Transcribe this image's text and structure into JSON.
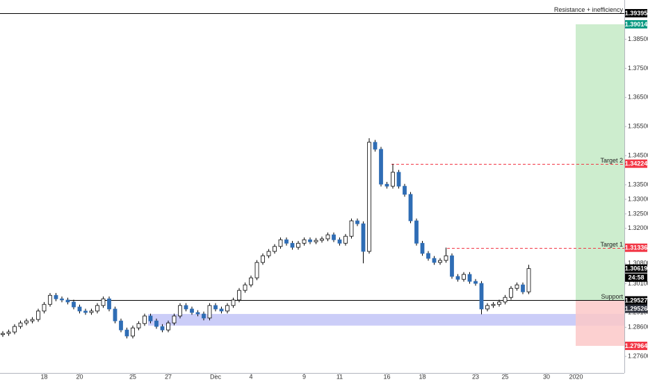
{
  "chart_data": {
    "type": "candlestick",
    "categories": [
      null,
      null,
      null,
      null,
      null,
      null,
      null,
      "18",
      null,
      null,
      null,
      null,
      null,
      "20",
      null,
      null,
      null,
      null,
      null,
      null,
      null,
      null,
      "25",
      null,
      null,
      null,
      null,
      null,
      "27",
      null,
      null,
      null,
      null,
      null,
      null,
      null,
      "Dec",
      null,
      null,
      null,
      null,
      null,
      "4",
      null,
      null,
      null,
      null,
      null,
      null,
      null,
      null,
      "9",
      null,
      null,
      null,
      null,
      null,
      "11",
      null,
      null,
      null,
      null,
      null,
      null,
      null,
      "16",
      null,
      null,
      null,
      null,
      null,
      "18",
      null,
      null,
      null,
      null,
      null,
      null,
      null,
      null,
      "23",
      null,
      null,
      null,
      null,
      "25",
      null,
      null,
      null,
      null,
      null,
      null,
      "30",
      null,
      null,
      null,
      null,
      "2020",
      null,
      null,
      null,
      null,
      null,
      null,
      null
    ],
    "open": [
      1.2835,
      1.2839,
      1.2844,
      1.2863,
      1.2875,
      1.2882,
      1.2887,
      1.2916,
      1.2939,
      1.297,
      1.2958,
      1.2954,
      1.2947,
      1.293,
      1.2916,
      1.2911,
      1.2916,
      1.2935,
      1.2958,
      1.2923,
      1.2882,
      1.2851,
      1.283,
      1.2858,
      1.2873,
      1.2899,
      1.2882,
      1.2863,
      1.2851,
      1.2875,
      1.2899,
      1.2935,
      1.2923,
      1.2911,
      1.2906,
      1.2892,
      1.2935,
      1.2923,
      1.2916,
      1.2935,
      1.2954,
      1.2987,
      1.3006,
      1.303,
      1.3083,
      1.3106,
      1.3121,
      1.3138,
      1.3161,
      1.3149,
      1.3135,
      1.3149,
      1.3161,
      1.3154,
      1.3159,
      1.3164,
      1.3178,
      1.3161,
      1.3149,
      1.3173,
      1.3226,
      1.3216,
      1.3121,
      1.3496,
      1.3472,
      1.3352,
      1.3345,
      1.3393,
      1.3345,
      1.3317,
      1.3226,
      1.3149,
      1.3114,
      1.3097,
      1.3083,
      1.309,
      1.3106,
      1.3035,
      1.3025,
      1.3042,
      1.3018,
      1.3011,
      1.2923,
      1.2935,
      1.2939,
      1.2947,
      1.2963,
      1.2994,
      1.3006,
      1.2982,
      null,
      null,
      null,
      null,
      null,
      null,
      null,
      null,
      null,
      null,
      null,
      null,
      null,
      null,
      null
    ],
    "high": [
      1.2847,
      1.2852,
      1.2871,
      1.2883,
      1.289,
      1.2895,
      1.2924,
      1.2947,
      1.2978,
      1.2978,
      1.2966,
      1.2962,
      1.2955,
      1.2938,
      1.2924,
      1.2924,
      1.2943,
      1.2966,
      1.2966,
      1.2931,
      1.289,
      1.2859,
      1.2866,
      1.2881,
      1.2907,
      1.2907,
      1.289,
      1.2871,
      1.2883,
      1.2907,
      1.2943,
      1.2943,
      1.2931,
      1.2919,
      1.2914,
      1.2943,
      1.2943,
      1.2931,
      1.2943,
      1.2962,
      1.2995,
      1.3014,
      1.3038,
      1.3091,
      1.3114,
      1.3129,
      1.3146,
      1.3169,
      1.3169,
      1.3157,
      1.3157,
      1.3169,
      1.3169,
      1.3167,
      1.3172,
      1.3186,
      1.3186,
      1.3169,
      1.3181,
      1.3234,
      1.3234,
      1.3224,
      1.351,
      1.3504,
      1.348,
      1.336,
      1.3422,
      1.3401,
      1.3353,
      1.3325,
      1.3234,
      1.3157,
      1.3122,
      1.3105,
      1.3098,
      1.3134,
      1.3114,
      1.3043,
      1.305,
      1.305,
      1.3026,
      1.3019,
      1.2943,
      1.2947,
      1.2955,
      1.2971,
      1.3002,
      1.3014,
      1.3014,
      1.3075,
      null,
      null,
      null,
      null,
      null,
      null,
      null,
      null,
      null,
      null,
      null,
      null,
      null,
      null,
      null
    ],
    "low": [
      1.2827,
      1.2831,
      1.2836,
      1.2855,
      1.2867,
      1.2874,
      1.2879,
      1.2908,
      1.2931,
      1.295,
      1.2946,
      1.2939,
      1.2922,
      1.2908,
      1.2903,
      1.2903,
      1.2908,
      1.2927,
      1.2915,
      1.2874,
      1.2843,
      1.2822,
      1.2822,
      1.285,
      1.2865,
      1.2874,
      1.2855,
      1.2843,
      1.2843,
      1.2867,
      1.2891,
      1.2915,
      1.2903,
      1.2898,
      1.2884,
      1.2884,
      1.2915,
      1.2908,
      1.2908,
      1.2927,
      1.2946,
      1.2979,
      1.2998,
      1.3022,
      1.3075,
      1.3098,
      1.3113,
      1.313,
      1.3141,
      1.3127,
      1.3127,
      1.3141,
      1.3146,
      1.3146,
      1.3151,
      1.3156,
      1.3153,
      1.3141,
      1.3141,
      1.3165,
      1.3208,
      1.308,
      1.3113,
      1.3464,
      1.3344,
      1.3337,
      1.3337,
      1.3337,
      1.3309,
      1.3218,
      1.3141,
      1.3106,
      1.3089,
      1.3075,
      1.3075,
      1.3082,
      1.3027,
      1.3017,
      1.3017,
      1.301,
      1.3003,
      1.2905,
      1.2915,
      1.2927,
      1.2931,
      1.2939,
      1.2955,
      1.2986,
      1.2974,
      1.2974,
      null,
      null,
      null,
      null,
      null,
      null,
      null,
      null,
      null,
      null,
      null,
      null,
      null,
      null,
      null
    ],
    "close": [
      1.2839,
      1.2844,
      1.2863,
      1.2875,
      1.2882,
      1.2887,
      1.2916,
      1.2939,
      1.297,
      1.2958,
      1.2954,
      1.2947,
      1.293,
      1.2916,
      1.2911,
      1.2916,
      1.2935,
      1.2958,
      1.2923,
      1.2882,
      1.2851,
      1.283,
      1.2858,
      1.2873,
      1.2899,
      1.2882,
      1.2863,
      1.2851,
      1.2875,
      1.2899,
      1.2935,
      1.2923,
      1.2911,
      1.2906,
      1.2892,
      1.2935,
      1.2923,
      1.2916,
      1.2935,
      1.2954,
      1.2987,
      1.3006,
      1.303,
      1.3083,
      1.3106,
      1.3121,
      1.3138,
      1.3161,
      1.3149,
      1.3135,
      1.3149,
      1.3161,
      1.3154,
      1.3159,
      1.3164,
      1.3178,
      1.3161,
      1.3149,
      1.3173,
      1.3226,
      1.3216,
      1.3121,
      1.3496,
      1.3472,
      1.3352,
      1.3345,
      1.3393,
      1.3345,
      1.3317,
      1.3226,
      1.3149,
      1.3114,
      1.3097,
      1.3083,
      1.309,
      1.3106,
      1.3035,
      1.3025,
      1.3042,
      1.3018,
      1.3011,
      1.2923,
      1.2935,
      1.2939,
      1.2947,
      1.2963,
      1.2994,
      1.3006,
      1.2982,
      1.30619,
      null,
      null,
      null,
      null,
      null,
      null,
      null,
      null,
      null,
      null,
      null,
      null,
      null,
      null,
      null
    ],
    "up_color": "#ffffff",
    "down_color": "#2f6db5",
    "ylim": [
      1.27056,
      1.39849
    ],
    "yticks": [
      {
        "value": 1.385,
        "label": "1.38500"
      },
      {
        "value": 1.375,
        "label": "1.37500"
      },
      {
        "value": 1.365,
        "label": "1.36500"
      },
      {
        "value": 1.355,
        "label": "1.35500"
      },
      {
        "value": 1.345,
        "label": "1.34500"
      },
      {
        "value": 1.335,
        "label": "1.33500"
      },
      {
        "value": 1.33,
        "label": "1.33000"
      },
      {
        "value": 1.325,
        "label": "1.32500"
      },
      {
        "value": 1.32,
        "label": "1.32000"
      },
      {
        "value": 1.308,
        "label": "1.30800"
      },
      {
        "value": 1.301,
        "label": "1.30100"
      },
      {
        "value": 1.291,
        "label": "1.29100"
      },
      {
        "value": 1.286,
        "label": "1.28600"
      },
      {
        "value": 1.276,
        "label": "1.27600"
      }
    ],
    "grid": false,
    "levels": [
      {
        "value": 1.39395,
        "label": "1.39395",
        "name": "Resistance + inefficiency",
        "color": "#000000",
        "style": "solid"
      },
      {
        "value": 1.34224,
        "label": "1.34224",
        "name": "Target 2",
        "color": "#f23645",
        "style": "dashed"
      },
      {
        "value": 1.31336,
        "label": "1.31336",
        "name": "Target 1",
        "color": "#f23645",
        "style": "dashed"
      },
      {
        "value": 1.29527,
        "label": "1.29527",
        "name": "Support",
        "color": "#000000",
        "style": "solid"
      }
    ],
    "position": {
      "entry": {
        "value": 1.29526,
        "label": "1.29526",
        "color": "#2a2e39"
      },
      "target": {
        "value": 1.39014,
        "label": "1.39014",
        "color": "#089981"
      },
      "stop": {
        "value": 1.27964,
        "label": "1.27964",
        "color": "#f23645"
      },
      "profit_color": "#c8ebc9",
      "loss_color": "#fbc8c8"
    },
    "zone": {
      "low": 1.2866,
      "high": 1.2906,
      "color": "#c5c8f7"
    },
    "last_price": {
      "value": 1.30619,
      "label": "1.30619",
      "countdown": "24:58",
      "color": "#000000"
    }
  }
}
